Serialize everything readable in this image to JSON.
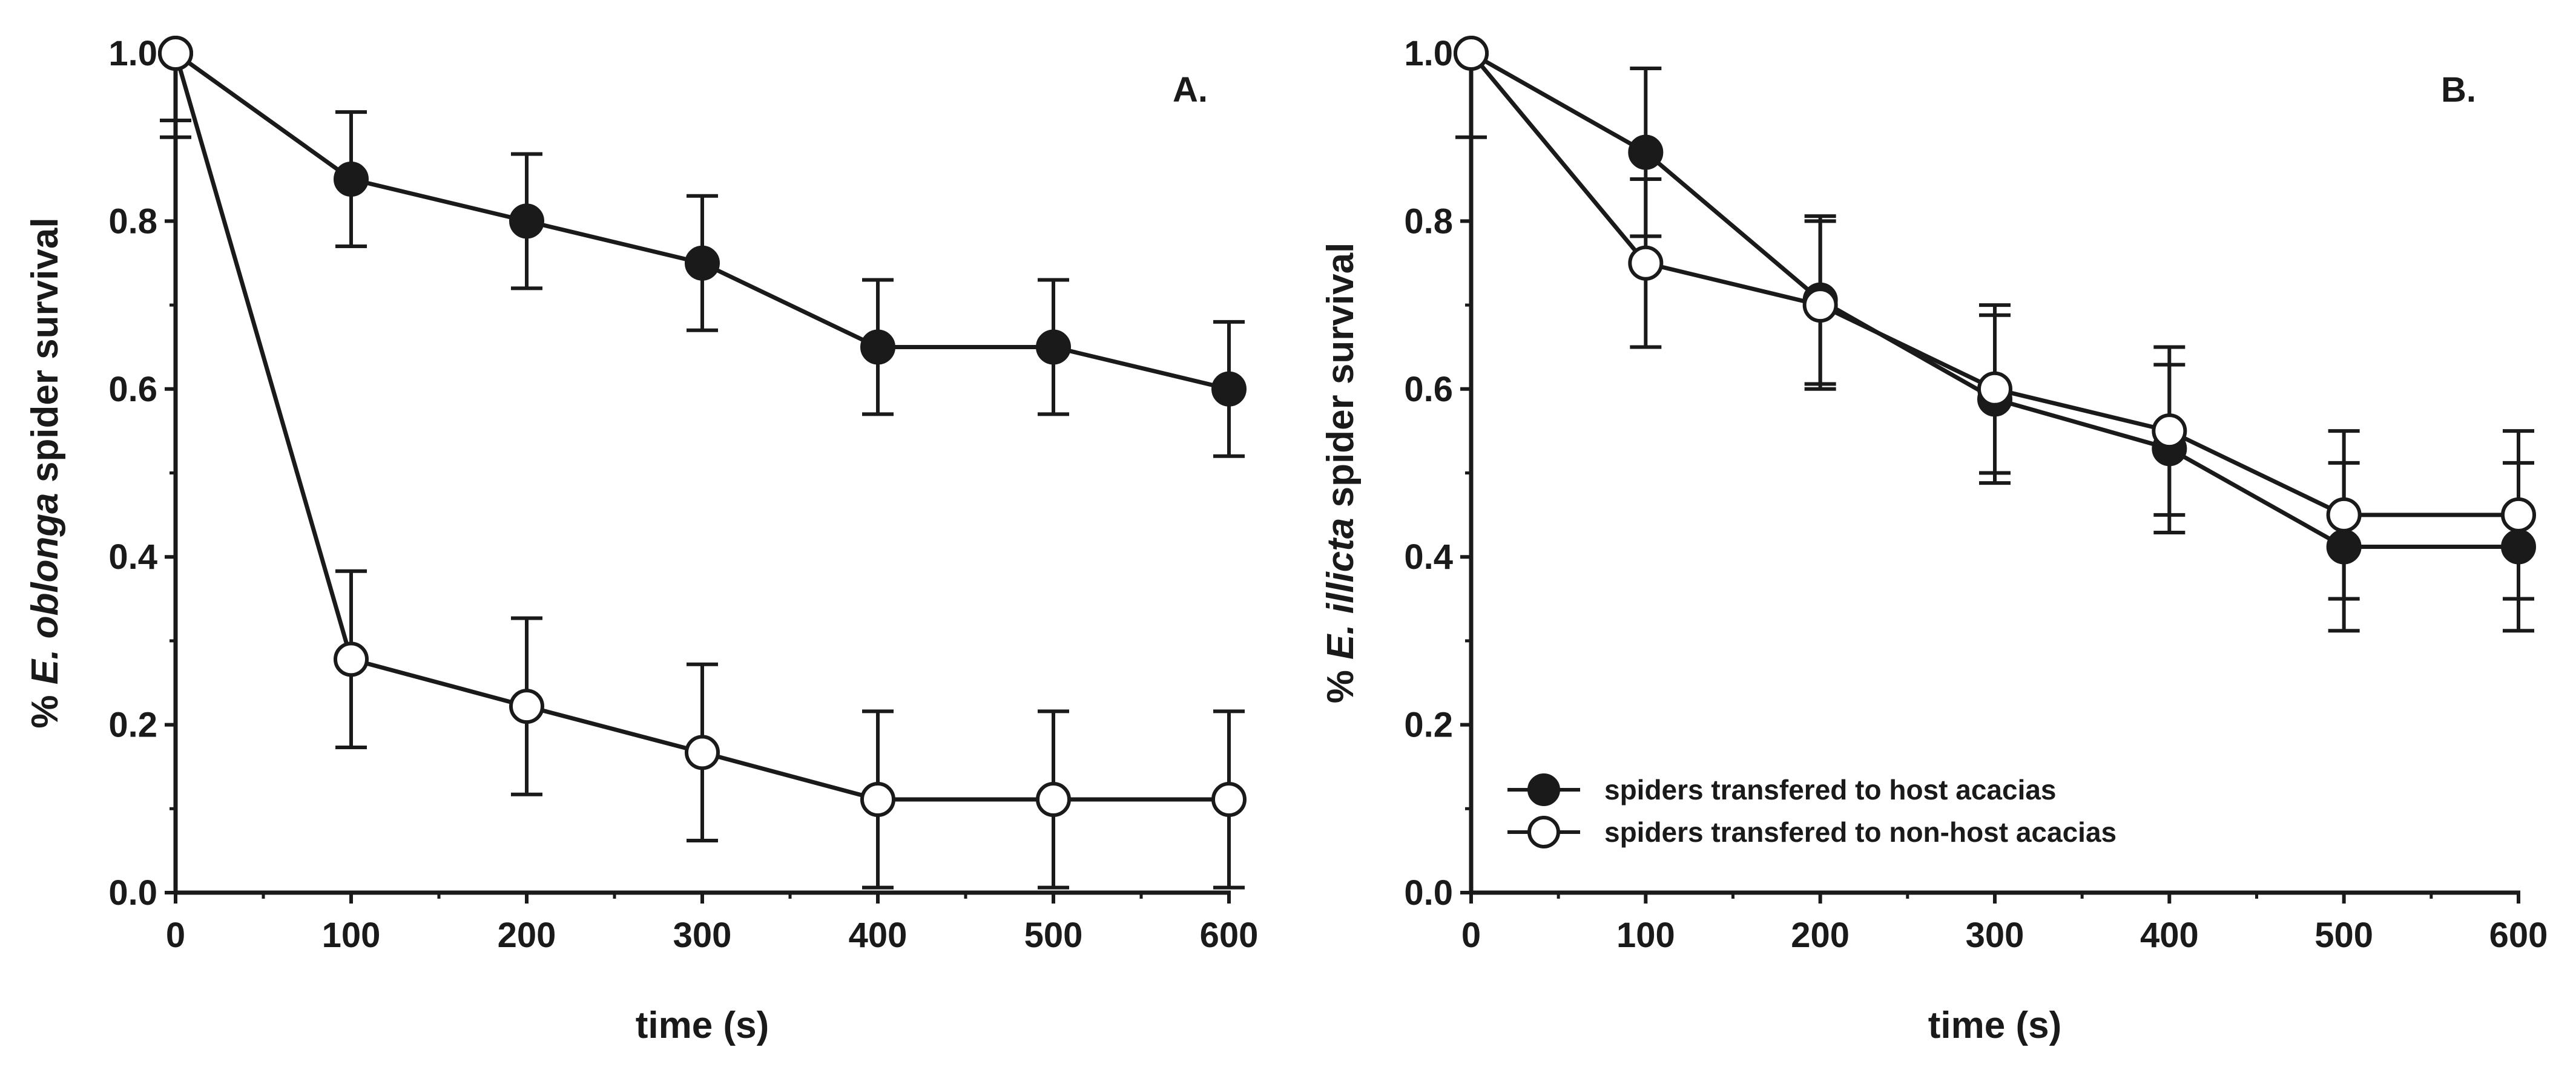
{
  "chart_data": [
    {
      "type": "line",
      "panel_label": "A.",
      "title": "",
      "xlabel": "time (s)",
      "ylabel": {
        "prefix": "% ",
        "species": "E. oblonga",
        "suffix": " spider survival"
      },
      "x": [
        0,
        100,
        200,
        300,
        400,
        500,
        600
      ],
      "xlim": [
        0,
        600
      ],
      "ylim": [
        0,
        1
      ],
      "xticks": [
        0,
        100,
        200,
        300,
        400,
        500,
        600
      ],
      "yticks": [
        0.0,
        0.2,
        0.4,
        0.6,
        0.8,
        1.0
      ],
      "xtick_labels": [
        "0",
        "100",
        "200",
        "300",
        "400",
        "500",
        "600"
      ],
      "ytick_labels": [
        "0.0",
        "0.2",
        "0.4",
        "0.6",
        "0.8",
        "1.0"
      ],
      "grid": false,
      "series": [
        {
          "name": "spiders transfered to host acacias",
          "marker": "filled-circle",
          "values": [
            1.0,
            0.85,
            0.8,
            0.75,
            0.65,
            0.65,
            0.6
          ],
          "error": [
            0.08,
            0.08,
            0.08,
            0.08,
            0.08,
            0.08,
            0.08
          ]
        },
        {
          "name": "spiders transfered to non-host acacias",
          "marker": "open-circle",
          "values": [
            1.0,
            0.278,
            0.222,
            0.167,
            0.111,
            0.111,
            0.111
          ],
          "error": [
            0.1,
            0.105,
            0.105,
            0.105,
            0.105,
            0.105,
            0.105
          ]
        }
      ]
    },
    {
      "type": "line",
      "panel_label": "B.",
      "title": "",
      "xlabel": "time (s)",
      "ylabel": {
        "prefix": "% ",
        "species": "E. illicta",
        "suffix": " spider survival"
      },
      "x": [
        0,
        100,
        200,
        300,
        400,
        500,
        600
      ],
      "xlim": [
        0,
        600
      ],
      "ylim": [
        0,
        1
      ],
      "xticks": [
        0,
        100,
        200,
        300,
        400,
        500,
        600
      ],
      "yticks": [
        0.0,
        0.2,
        0.4,
        0.6,
        0.8,
        1.0
      ],
      "xtick_labels": [
        "0",
        "100",
        "200",
        "300",
        "400",
        "500",
        "600"
      ],
      "ytick_labels": [
        "0.0",
        "0.2",
        "0.4",
        "0.6",
        "0.8",
        "1.0"
      ],
      "grid": false,
      "legend_position": "bottom-left",
      "series": [
        {
          "name": "spiders transfered to host acacias",
          "marker": "filled-circle",
          "values": [
            1.0,
            0.882,
            0.706,
            0.588,
            0.529,
            0.412,
            0.412
          ],
          "error": [
            0.0,
            0.1,
            0.1,
            0.1,
            0.1,
            0.1,
            0.1
          ]
        },
        {
          "name": "spiders transfered to non-host acacias",
          "marker": "open-circle",
          "values": [
            1.0,
            0.75,
            0.7,
            0.6,
            0.55,
            0.45,
            0.45
          ],
          "error": [
            0.1,
            0.1,
            0.1,
            0.1,
            0.1,
            0.1,
            0.1
          ]
        }
      ],
      "legend": [
        "spiders transfered to host acacias",
        "spiders transfered to non-host acacias"
      ]
    }
  ]
}
